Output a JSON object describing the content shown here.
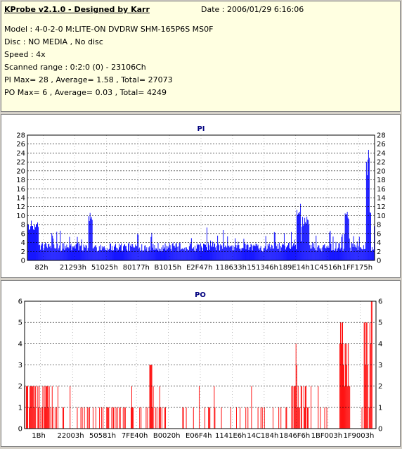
{
  "header": {
    "title": "KProbe v2.1.0 - Designed by Karr",
    "date": "Date : 2006/01/29 6:16:06",
    "model": "Model : 4-0-2-0 M:LITE-ON DVDRW SHM-165P6S MS0F",
    "disc": "Disc : NO MEDIA , No disc",
    "speed": "Speed : 4x",
    "scanned_range": "Scanned range : 0:2:0 (0) - 23106Ch",
    "pi_summary": "PI Max= 28 , Average= 1.58 , Total= 27073",
    "po_summary": "PO Max= 6 , Average= 0.03 , Total= 4249"
  },
  "chart_data": [
    {
      "type": "bar",
      "title": "PI",
      "ylim": [
        0,
        28
      ],
      "yticks": [
        0,
        2,
        4,
        6,
        8,
        10,
        12,
        14,
        16,
        18,
        20,
        22,
        24,
        26,
        28
      ],
      "xticks": [
        "82h",
        "21293h",
        "51025h",
        "80177h",
        "B1015h",
        "E2F47h",
        "118633h",
        "151346h",
        "189E14h",
        "1C4516h",
        "1FF175h"
      ],
      "color": "#0000ff",
      "grid": true,
      "n_points": 490,
      "baseline": [
        2,
        4
      ],
      "features": [
        {
          "at": 0.0,
          "width": 0.06,
          "value": 9
        },
        {
          "at": 0.18,
          "width": 0.01,
          "value": 11
        },
        {
          "at": 0.78,
          "width": 0.01,
          "value": 13
        },
        {
          "at": 0.8,
          "width": 0.02,
          "value": 10
        },
        {
          "at": 0.92,
          "width": 0.01,
          "value": 12
        },
        {
          "at": 0.978,
          "width": 0.004,
          "value": 24
        },
        {
          "at": 0.982,
          "width": 0.003,
          "value": 28
        },
        {
          "at": 0.986,
          "width": 0.005,
          "value": 14
        }
      ]
    },
    {
      "type": "bar",
      "title": "PO",
      "ylim": [
        0,
        6
      ],
      "yticks": [
        0,
        1,
        2,
        3,
        4,
        5,
        6
      ],
      "xticks": [
        "1Bh",
        "22003h",
        "50581h",
        "7FE40h",
        "B0020h",
        "E06F4h",
        "1141E6h",
        "14C184h",
        "1846F6h",
        "1BF003h",
        "1F9003h"
      ],
      "color": "#ff0000",
      "grid": true,
      "n_points": 490,
      "features": [
        {
          "at": 0.0,
          "width": 0.16,
          "value": 2
        },
        {
          "at": 0.36,
          "width": 0.01,
          "value": 3
        },
        {
          "at": 0.77,
          "width": 0.005,
          "value": 4
        },
        {
          "at": 0.78,
          "width": 0.04,
          "value": 2
        },
        {
          "at": 0.9,
          "width": 0.01,
          "value": 5
        },
        {
          "at": 0.915,
          "width": 0.02,
          "value": 4
        },
        {
          "at": 0.97,
          "width": 0.01,
          "value": 5
        },
        {
          "at": 0.985,
          "width": 0.006,
          "value": 6
        }
      ]
    }
  ]
}
